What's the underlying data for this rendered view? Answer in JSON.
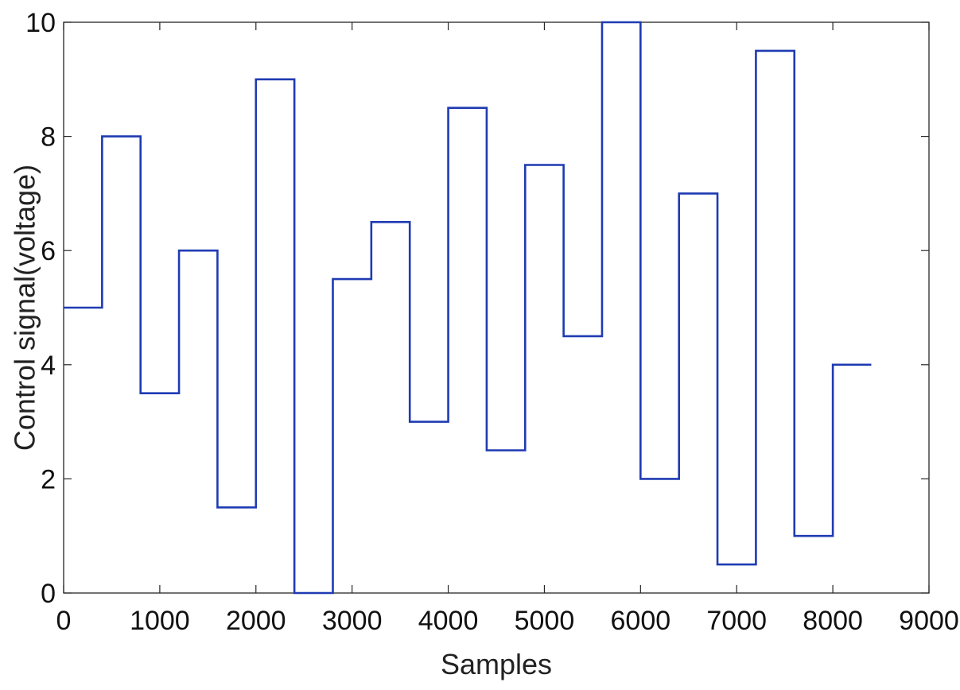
{
  "chart_data": {
    "type": "line",
    "step": true,
    "xlabel": "Samples",
    "ylabel": "Control signal(voltage)",
    "xlim": [
      0,
      9000
    ],
    "ylim": [
      0,
      10
    ],
    "x_ticks": [
      "0",
      "1000",
      "2000",
      "3000",
      "4000",
      "5000",
      "6000",
      "7000",
      "8000",
      "9000"
    ],
    "y_ticks": [
      "0",
      "2",
      "4",
      "6",
      "8",
      "10"
    ],
    "grid": false,
    "series": [
      {
        "color": "#1f3bb3",
        "x": [
          0,
          400,
          800,
          1200,
          1600,
          2000,
          2400,
          2800,
          3200,
          3600,
          4000,
          4400,
          4800,
          5200,
          5600,
          6000,
          6400,
          6800,
          7200,
          7600,
          8000,
          8400
        ],
        "values": [
          5,
          8,
          3.5,
          6,
          1.5,
          9,
          0,
          5.5,
          6.5,
          3,
          8.5,
          2.5,
          7.5,
          4.5,
          10,
          2,
          7,
          0.5,
          9.5,
          1,
          4,
          4
        ]
      }
    ]
  }
}
